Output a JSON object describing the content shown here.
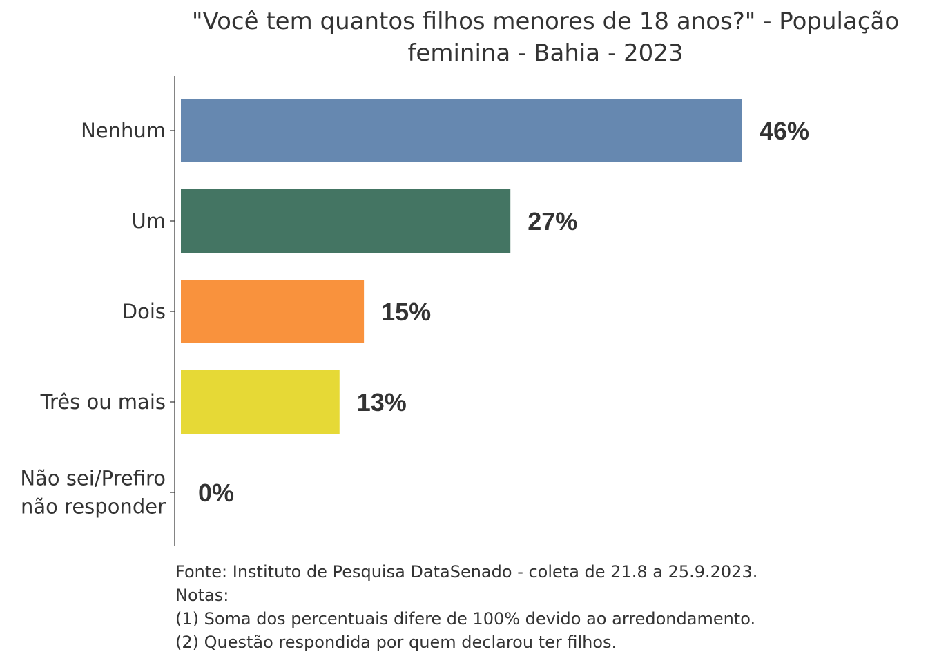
{
  "chart_data": {
    "type": "bar",
    "orientation": "horizontal",
    "title_lines": [
      "\"Você tem quantos filhos menores de 18 anos?\" - População",
      "feminina - Bahia - 2023"
    ],
    "categories": [
      [
        "Nenhum"
      ],
      [
        "Um"
      ],
      [
        "Dois"
      ],
      [
        "Três ou mais"
      ],
      [
        "Não sei/Prefiro",
        "não responder"
      ]
    ],
    "values": [
      46,
      27,
      15,
      13,
      0
    ],
    "value_labels": [
      "46%",
      "27%",
      "15%",
      "13%",
      "0%"
    ],
    "colors": [
      "#6688B0",
      "#447563",
      "#F9923D",
      "#E6D936",
      "#8A6FA8"
    ],
    "xlim": [
      0,
      60
    ],
    "grid": false,
    "legend": "none"
  },
  "footnotes": [
    "Fonte: Instituto de Pesquisa DataSenado - coleta de 21.8 a 25.9.2023.",
    "Notas:",
    "(1) Soma dos percentuais difere de 100% devido ao arredondamento.",
    "(2) Questão respondida por quem declarou ter filhos."
  ]
}
